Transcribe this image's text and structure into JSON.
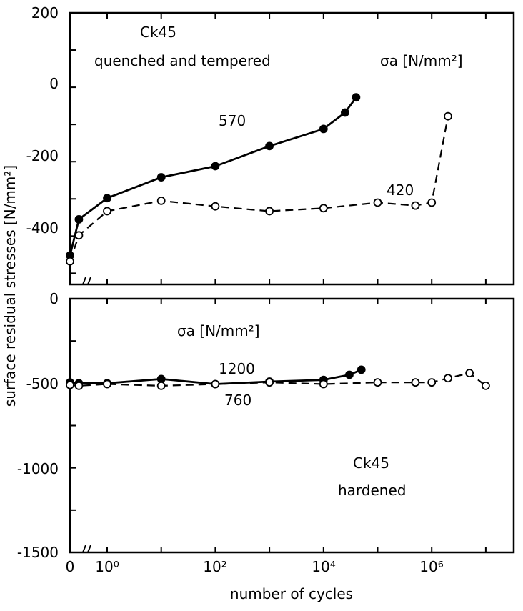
{
  "chart_data": [
    {
      "type": "line",
      "panel": "top",
      "ylabel": "surface residual stresses [N/mm²]",
      "ylim": [
        -530,
        200
      ],
      "y_ticks": [
        200,
        0,
        -200,
        -400
      ],
      "x_scale": "log (cycles), with initial state 0 on a broken axis",
      "annotations": [
        "Ck45",
        "quenched and tempered",
        "σa [N/mm²]"
      ],
      "series": [
        {
          "name": "570",
          "style": "solid, filled circles",
          "x": [
            0,
            0.3,
            1,
            10,
            100,
            1000,
            10000,
            25000,
            40000
          ],
          "y": [
            -452,
            -355,
            -298,
            -242,
            -212,
            -158,
            -112,
            -68,
            -27
          ]
        },
        {
          "name": "420",
          "style": "dashed, open circles",
          "x": [
            0,
            0.3,
            1,
            10,
            100,
            1000,
            10000,
            100000,
            500000,
            1000000,
            2000000
          ],
          "y": [
            -468,
            -398,
            -333,
            -305,
            -320,
            -333,
            -325,
            -310,
            -318,
            -310,
            -78
          ]
        }
      ]
    },
    {
      "type": "line",
      "panel": "bottom",
      "xlabel": "number of cycles",
      "ylim": [
        -1500,
        0
      ],
      "y_ticks": [
        0,
        -500,
        -1000,
        -1500
      ],
      "x_ticks": [
        "0",
        "10⁰",
        "10²",
        "10⁴",
        "10⁶"
      ],
      "annotations": [
        "σa [N/mm²]",
        "Ck45",
        "hardened"
      ],
      "series": [
        {
          "name": "1200",
          "style": "solid, filled circles",
          "x": [
            0,
            0.3,
            1,
            10,
            100,
            1000,
            10000,
            30000,
            50000
          ],
          "y": [
            -495,
            -500,
            -500,
            -475,
            -505,
            -490,
            -480,
            -450,
            -420
          ]
        },
        {
          "name": "760",
          "style": "dashed, open circles",
          "x": [
            0,
            0.3,
            1,
            10,
            100,
            1000,
            10000,
            100000,
            500000,
            1000000,
            2000000,
            5000000,
            10000000
          ],
          "y": [
            -510,
            -515,
            -505,
            -515,
            -505,
            -495,
            -505,
            -495,
            -495,
            -495,
            -470,
            -440,
            -515
          ]
        }
      ]
    }
  ]
}
